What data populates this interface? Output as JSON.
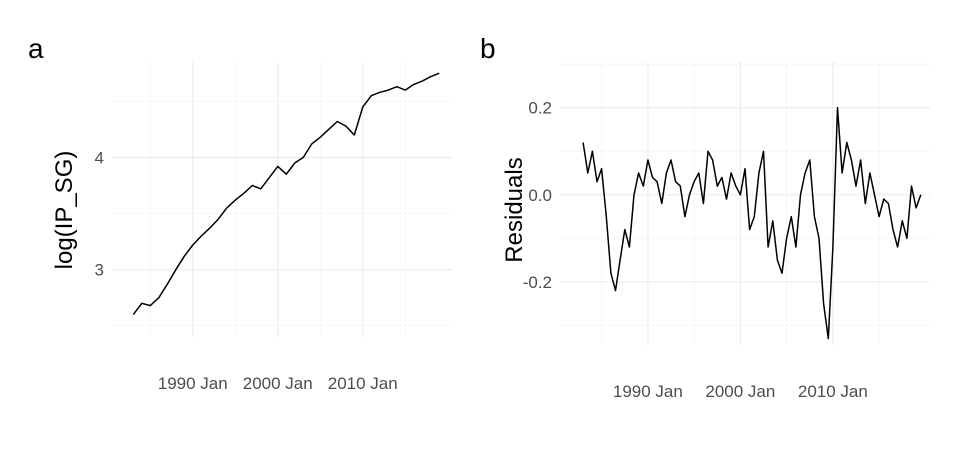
{
  "chart_data": [
    {
      "panel_label": "a",
      "type": "line",
      "xlabel": "",
      "ylabel": "log(IP_SG)",
      "x_ticks": [
        "1990 Jan",
        "2000 Jan",
        "2010 Jan"
      ],
      "x_tick_years": [
        1990,
        2000,
        2010
      ],
      "xlim": [
        1980.5,
        2020.5
      ],
      "y_ticks": [
        "3",
        "4"
      ],
      "y_tick_values": [
        3,
        4
      ],
      "ylim": [
        2.4,
        4.85
      ],
      "grid": true,
      "series": [
        {
          "x": [
            1983,
            1984,
            1985,
            1986,
            1987,
            1988,
            1989,
            1990,
            1991,
            1992,
            1993,
            1994,
            1995,
            1996,
            1997,
            1998,
            1999,
            2000,
            2001,
            2002,
            2003,
            2004,
            2005,
            2006,
            2007,
            2008,
            2009,
            2010,
            2011,
            2012,
            2013,
            2014,
            2015,
            2016,
            2017,
            2018,
            2019
          ],
          "values": [
            2.6,
            2.7,
            2.68,
            2.75,
            2.87,
            3.0,
            3.12,
            3.22,
            3.3,
            3.37,
            3.45,
            3.55,
            3.62,
            3.68,
            3.75,
            3.72,
            3.82,
            3.92,
            3.85,
            3.95,
            4.0,
            4.12,
            4.18,
            4.25,
            4.32,
            4.28,
            4.2,
            4.45,
            4.55,
            4.58,
            4.6,
            4.63,
            4.6,
            4.65,
            4.68,
            4.72,
            4.75
          ]
        }
      ]
    },
    {
      "panel_label": "b",
      "type": "line",
      "xlabel": "",
      "ylabel": "Residuals",
      "x_ticks": [
        "1990 Jan",
        "2000 Jan",
        "2010 Jan"
      ],
      "x_tick_years": [
        1990,
        2000,
        2010
      ],
      "xlim": [
        1980.5,
        2020.5
      ],
      "y_ticks": [
        "0.2",
        "0.0",
        "-0.2"
      ],
      "y_tick_values": [
        0.2,
        0.0,
        -0.2
      ],
      "ylim": [
        -0.345,
        0.305
      ],
      "grid": true,
      "series": [
        {
          "x": [
            1983,
            1983.5,
            1984,
            1984.5,
            1985,
            1985.5,
            1986,
            1986.5,
            1987,
            1987.5,
            1988,
            1988.5,
            1989,
            1989.5,
            1990,
            1990.5,
            1991,
            1991.5,
            1992,
            1992.5,
            1993,
            1993.5,
            1994,
            1994.5,
            1995,
            1995.5,
            1996,
            1996.5,
            1997,
            1997.5,
            1998,
            1998.5,
            1999,
            1999.5,
            2000,
            2000.5,
            2001,
            2001.5,
            2002,
            2002.5,
            2003,
            2003.5,
            2004,
            2004.5,
            2005,
            2005.5,
            2006,
            2006.5,
            2007,
            2007.5,
            2008,
            2008.5,
            2009,
            2009.5,
            2010,
            2010.5,
            2011,
            2011.5,
            2012,
            2012.5,
            2013,
            2013.5,
            2014,
            2014.5,
            2015,
            2015.5,
            2016,
            2016.5,
            2017,
            2017.5,
            2018,
            2018.5,
            2019,
            2019.5
          ],
          "values": [
            0.12,
            0.05,
            0.1,
            0.03,
            0.06,
            -0.05,
            -0.18,
            -0.22,
            -0.15,
            -0.08,
            -0.12,
            0.0,
            0.05,
            0.02,
            0.08,
            0.04,
            0.03,
            -0.02,
            0.05,
            0.08,
            0.03,
            0.02,
            -0.05,
            0.0,
            0.03,
            0.05,
            -0.02,
            0.1,
            0.08,
            0.02,
            0.04,
            -0.01,
            0.05,
            0.02,
            0.0,
            0.06,
            -0.08,
            -0.05,
            0.05,
            0.1,
            -0.12,
            -0.06,
            -0.15,
            -0.18,
            -0.1,
            -0.05,
            -0.12,
            0.0,
            0.05,
            0.08,
            -0.05,
            -0.1,
            -0.25,
            -0.33,
            -0.12,
            0.2,
            0.05,
            0.12,
            0.08,
            0.02,
            0.08,
            -0.02,
            0.05,
            0.0,
            -0.05,
            -0.01,
            -0.02,
            -0.08,
            -0.12,
            -0.06,
            -0.1,
            0.02,
            -0.03,
            0.0
          ]
        }
      ]
    }
  ]
}
